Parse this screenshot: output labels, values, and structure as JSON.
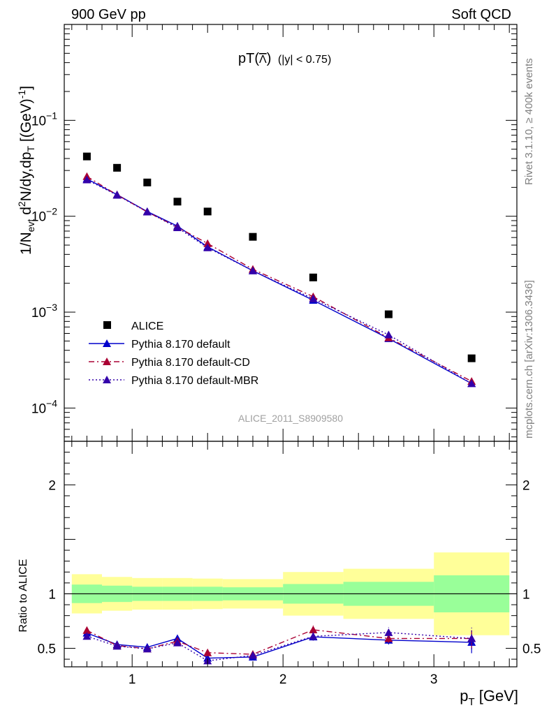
{
  "header": {
    "left": "900 GeV pp",
    "right": "Soft QCD"
  },
  "side_labels": {
    "rivet": "Rivet 3.1.10, ≥ 400k events",
    "mcplots": "mcplots.cern.ch [arXiv:1306.3436]"
  },
  "watermark": "ALICE_2011_S8909580",
  "chart_data": [
    {
      "type": "scatter",
      "title": "pT(Λ̅) (|y| < 0.75)",
      "title_main": "pT(",
      "title_sym": "Λ",
      "title_close": ")",
      "title_cut": "(|y| < 0.75)",
      "ylabel": "1/N_evt d²N/dy,dp_T [(GeV)⁻¹]",
      "ylabel_parts": {
        "a": "1/N",
        "b": "evt",
        "c": " d",
        "d": "2",
        "e": "N/dy,dp",
        "f": "T",
        "g": " [(GeV)",
        "h": "-1",
        "i": "]"
      },
      "yscale": "log",
      "ylim": [
        4.5e-05,
        1.0
      ],
      "xlim": [
        0.55,
        3.55
      ],
      "y_tick_labels": [
        {
          "v": 0.1,
          "base": "10",
          "exp": "−1"
        },
        {
          "v": 0.01,
          "base": "10",
          "exp": "−2"
        },
        {
          "v": 0.001,
          "base": "10",
          "exp": "−3"
        },
        {
          "v": 0.0001,
          "base": "10",
          "exp": "−4"
        }
      ],
      "legend_position": "bottom-left",
      "series": [
        {
          "name": "ALICE",
          "color": "#000000",
          "marker": "square",
          "x": [
            0.7,
            0.9,
            1.1,
            1.3,
            1.5,
            1.8,
            2.2,
            2.7,
            3.25
          ],
          "y": [
            0.042,
            0.032,
            0.0225,
            0.0142,
            0.0112,
            0.0061,
            0.0023,
            0.00095,
            0.00033
          ]
        },
        {
          "name": "Pythia 8.170 default",
          "color": "#0000cc",
          "marker": "triangle",
          "line": "solid",
          "x": [
            0.7,
            0.9,
            1.1,
            1.3,
            1.5,
            1.8,
            2.2,
            2.7,
            3.25
          ],
          "y": [
            0.0245,
            0.0168,
            0.0112,
            0.0079,
            0.0048,
            0.0027,
            0.00133,
            0.00053,
            0.00018
          ]
        },
        {
          "name": "Pythia 8.170 default-CD",
          "color": "#aa0033",
          "marker": "triangle",
          "line": "dashdot",
          "x": [
            0.7,
            0.9,
            1.1,
            1.3,
            1.5,
            1.8,
            2.2,
            2.7,
            3.25
          ],
          "y": [
            0.026,
            0.0167,
            0.0111,
            0.0077,
            0.0052,
            0.0028,
            0.00145,
            0.00054,
            0.00019
          ]
        },
        {
          "name": "Pythia 8.170 default-MBR",
          "color": "#3300aa",
          "marker": "triangle",
          "line": "dotted",
          "x": [
            0.7,
            0.9,
            1.1,
            1.3,
            1.5,
            1.8,
            2.2,
            2.7,
            3.25
          ],
          "y": [
            0.024,
            0.0166,
            0.0111,
            0.0076,
            0.0047,
            0.0027,
            0.00138,
            0.00058,
            0.00018
          ]
        }
      ]
    },
    {
      "type": "scatter",
      "ylabel": "Ratio to ALICE",
      "xlabel": "p_T [GeV]",
      "xlabel_parts": {
        "a": "p",
        "b": "T",
        "c": " [GeV]"
      },
      "xlim": [
        0.55,
        3.55
      ],
      "ylim": [
        0.33,
        2.4
      ],
      "x_tick_labels": [
        {
          "v": 1,
          "label": "1"
        },
        {
          "v": 2,
          "label": "2"
        },
        {
          "v": 3,
          "label": "3"
        }
      ],
      "y_tick_labels": [
        {
          "v": 0.5,
          "label": "0.5"
        },
        {
          "v": 1,
          "label": "1"
        },
        {
          "v": 2,
          "label": "2"
        }
      ],
      "bands": {
        "edges": [
          0.6,
          0.8,
          1.0,
          1.2,
          1.4,
          1.6,
          2.0,
          2.4,
          3.0,
          3.5
        ],
        "inner_lo": [
          0.915,
          0.925,
          0.935,
          0.935,
          0.935,
          0.94,
          0.91,
          0.89,
          0.83
        ],
        "inner_hi": [
          1.085,
          1.075,
          1.065,
          1.065,
          1.065,
          1.06,
          1.09,
          1.11,
          1.17
        ],
        "outer_lo": [
          0.82,
          0.845,
          0.855,
          0.855,
          0.86,
          0.865,
          0.8,
          0.77,
          0.62
        ],
        "outer_hi": [
          1.18,
          1.155,
          1.145,
          1.145,
          1.14,
          1.135,
          1.2,
          1.23,
          1.38
        ],
        "inner_color": "#99ff99",
        "outer_color": "#ffff99"
      },
      "series": [
        {
          "name": "Pythia 8.170 default",
          "color": "#0000cc",
          "line": "solid",
          "x": [
            0.7,
            0.9,
            1.1,
            1.3,
            1.5,
            1.8,
            2.2,
            2.7,
            3.25
          ],
          "y": [
            0.64,
            0.535,
            0.51,
            0.59,
            0.41,
            0.42,
            0.605,
            0.575,
            0.555
          ],
          "err": [
            0.02,
            0.02,
            0.02,
            0.025,
            0.03,
            0.025,
            0.03,
            0.04,
            0.1
          ]
        },
        {
          "name": "Pythia 8.170 default-CD",
          "color": "#aa0033",
          "line": "dashdot",
          "x": [
            0.7,
            0.9,
            1.1,
            1.3,
            1.5,
            1.8,
            2.2,
            2.7,
            3.25
          ],
          "y": [
            0.665,
            0.525,
            0.495,
            0.565,
            0.46,
            0.445,
            0.67,
            0.59,
            0.59
          ],
          "err": [
            0.02,
            0.02,
            0.02,
            0.025,
            0.03,
            0.025,
            0.04,
            0.04,
            0.09
          ]
        },
        {
          "name": "Pythia 8.170 default-MBR",
          "color": "#3300aa",
          "line": "dotted",
          "x": [
            0.7,
            0.9,
            1.1,
            1.3,
            1.5,
            1.8,
            2.2,
            2.7,
            3.25
          ],
          "y": [
            0.61,
            0.52,
            0.495,
            0.55,
            0.385,
            0.435,
            0.61,
            0.645,
            0.59
          ],
          "err": [
            0.02,
            0.02,
            0.02,
            0.025,
            0.03,
            0.025,
            0.04,
            0.05,
            0.1
          ]
        }
      ]
    }
  ]
}
